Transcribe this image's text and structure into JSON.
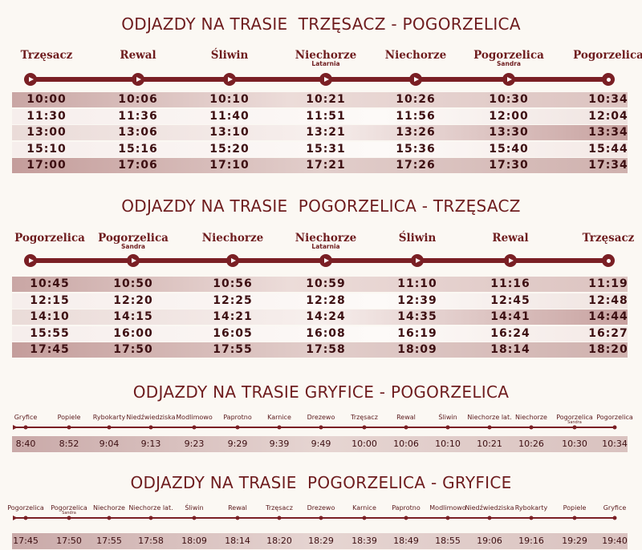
{
  "sections": [
    {
      "title": "ODJAZDY NA TRASIE  TRZĘSACZ - POGORZELICA",
      "stops": [
        {
          "name": "Trzęsacz",
          "sub": ""
        },
        {
          "name": "Rewal",
          "sub": ""
        },
        {
          "name": "Śliwin",
          "sub": ""
        },
        {
          "name": "Niechorze",
          "sub": "Latarnia"
        },
        {
          "name": "Niechorze",
          "sub": ""
        },
        {
          "name": "Pogorzelica",
          "sub": "Sandra"
        },
        {
          "name": "Pogorzelica",
          "sub": ""
        }
      ],
      "rows": [
        [
          "10:00",
          "10:06",
          "10:10",
          "10:21",
          "10:26",
          "10:30",
          "10:34"
        ],
        [
          "11:30",
          "11:36",
          "11:40",
          "11:51",
          "11:56",
          "12:00",
          "12:04"
        ],
        [
          "13:00",
          "13:06",
          "13:10",
          "13:21",
          "13:26",
          "13:30",
          "13:34"
        ],
        [
          "15:10",
          "15:16",
          "15:20",
          "15:31",
          "15:36",
          "15:40",
          "15:44"
        ],
        [
          "17:00",
          "17:06",
          "17:10",
          "17:21",
          "17:26",
          "17:30",
          "17:34"
        ]
      ]
    },
    {
      "title": "ODJAZDY NA TRASIE  POGORZELICA - TRZĘSACZ",
      "stops": [
        {
          "name": "Pogorzelica",
          "sub": ""
        },
        {
          "name": "Pogorzelica",
          "sub": "Sandra"
        },
        {
          "name": "Niechorze",
          "sub": ""
        },
        {
          "name": "Niechorze",
          "sub": "Latarnia"
        },
        {
          "name": "Śliwin",
          "sub": ""
        },
        {
          "name": "Rewal",
          "sub": ""
        },
        {
          "name": "Trzęsacz",
          "sub": ""
        }
      ],
      "rows": [
        [
          "10:45",
          "10:50",
          "10:56",
          "10:59",
          "11:10",
          "11:16",
          "11:19"
        ],
        [
          "12:15",
          "12:20",
          "12:25",
          "12:28",
          "12:39",
          "12:45",
          "12:48"
        ],
        [
          "14:10",
          "14:15",
          "14:21",
          "14:24",
          "14:35",
          "14:41",
          "14:44"
        ],
        [
          "15:55",
          "16:00",
          "16:05",
          "16:08",
          "16:19",
          "16:24",
          "16:27"
        ],
        [
          "17:45",
          "17:50",
          "17:55",
          "17:58",
          "18:09",
          "18:14",
          "18:20"
        ]
      ]
    }
  ],
  "small_sections": [
    {
      "title": "ODJAZDY NA TRASIE GRYFICE - POGORZELICA",
      "stops": [
        {
          "name": "Gryfice",
          "sub": ""
        },
        {
          "name": "Popiele",
          "sub": ""
        },
        {
          "name": "Rybokarty",
          "sub": ""
        },
        {
          "name": "Niedźwiedziska",
          "sub": ""
        },
        {
          "name": "Modlimowo",
          "sub": ""
        },
        {
          "name": "Paprotno",
          "sub": ""
        },
        {
          "name": "Karnice",
          "sub": ""
        },
        {
          "name": "Drezewo",
          "sub": ""
        },
        {
          "name": "Trzęsacz",
          "sub": ""
        },
        {
          "name": "Rewal",
          "sub": ""
        },
        {
          "name": "Śliwin",
          "sub": ""
        },
        {
          "name": "Niechorze lat.",
          "sub": ""
        },
        {
          "name": "Niechorze",
          "sub": ""
        },
        {
          "name": "Pogorzelica",
          "sub": "Sandra"
        },
        {
          "name": "Pogorzelica",
          "sub": ""
        }
      ],
      "times": [
        "8:40",
        "8:52",
        "9:04",
        "9:13",
        "9:23",
        "9:29",
        "9:39",
        "9:49",
        "10:00",
        "10:06",
        "10:10",
        "10:21",
        "10:26",
        "10:30",
        "10:34"
      ]
    },
    {
      "title": "ODJAZDY NA TRASIE  POGORZELICA - GRYFICE",
      "stops": [
        {
          "name": "Pogorzelica",
          "sub": ""
        },
        {
          "name": "Pogorzelica",
          "sub": "Sandra"
        },
        {
          "name": "Niechorze",
          "sub": ""
        },
        {
          "name": "Niechorze lat.",
          "sub": ""
        },
        {
          "name": "Śliwin",
          "sub": ""
        },
        {
          "name": "Rewal",
          "sub": ""
        },
        {
          "name": "Trzęsacz",
          "sub": ""
        },
        {
          "name": "Drezewo",
          "sub": ""
        },
        {
          "name": "Karnice",
          "sub": ""
        },
        {
          "name": "Paprotno",
          "sub": ""
        },
        {
          "name": "Modlimowo",
          "sub": ""
        },
        {
          "name": "Niedźwiedziska",
          "sub": ""
        },
        {
          "name": "Rybokarty",
          "sub": ""
        },
        {
          "name": "Popiele",
          "sub": ""
        },
        {
          "name": "Gryfice",
          "sub": ""
        }
      ],
      "times": [
        "17:45",
        "17:50",
        "17:55",
        "17:58",
        "18:09",
        "18:14",
        "18:20",
        "18:29",
        "18:39",
        "18:49",
        "18:55",
        "19:06",
        "19:16",
        "19:29",
        "19:40"
      ]
    }
  ],
  "colors": {
    "primary": "#7a1f24",
    "row_dark": "#d2b3b1",
    "row_light": "#f3e9e6"
  }
}
